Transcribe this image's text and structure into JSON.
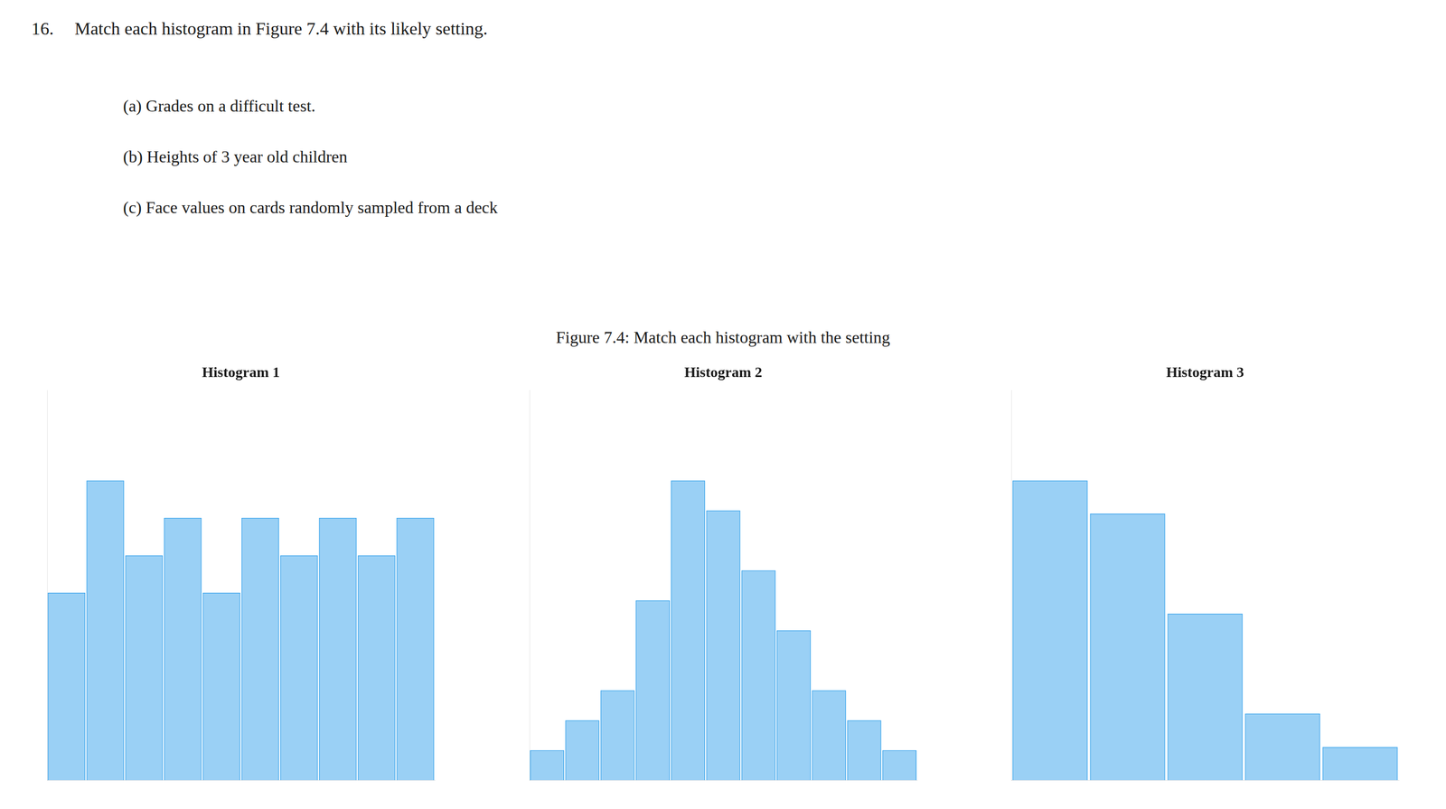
{
  "title": "Figure 7.4: Match each histogram with the setting",
  "annotations": [
    "16.",
    "Match each histogram in Figure 7.4 with its likely setting.",
    "(a)  Grades on a difficult test.",
    "(b)  Heights of 3 year old children",
    "(c)  Face values on cards randomly sampled from a deck"
  ],
  "chart_data": [
    {
      "type": "bar",
      "title": "Histogram 1",
      "categories": [
        null,
        null,
        null,
        null,
        null,
        null,
        null,
        null,
        null,
        null
      ],
      "values": [
        5,
        8,
        6,
        7,
        5,
        7,
        6,
        7,
        6,
        7
      ],
      "ylim": [
        0,
        10.4
      ],
      "grid": false,
      "tick_labels": false
    },
    {
      "type": "bar",
      "title": "Histogram 2",
      "categories": [
        null,
        null,
        null,
        null,
        null,
        null,
        null,
        null,
        null,
        null,
        null
      ],
      "values": [
        1,
        2,
        3,
        6,
        10,
        9,
        7,
        5,
        3,
        2,
        1
      ],
      "ylim": [
        0,
        13
      ],
      "grid": false,
      "tick_labels": false
    },
    {
      "type": "bar",
      "title": "Histogram 3",
      "categories": [
        null,
        null,
        null,
        null,
        null
      ],
      "values": [
        9,
        8,
        5,
        2,
        1
      ],
      "ylim": [
        0,
        11.7
      ],
      "grid": false,
      "tick_labels": false
    }
  ]
}
